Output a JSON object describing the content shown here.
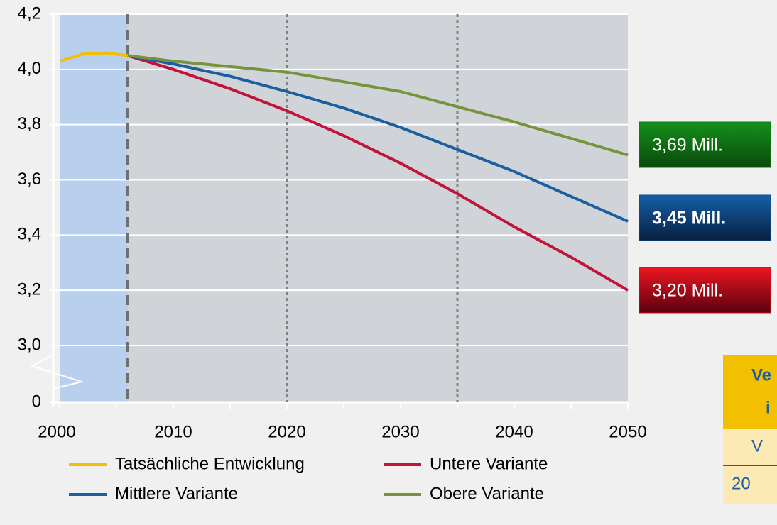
{
  "chart_data": {
    "type": "line",
    "x": [
      2000,
      2002,
      2004,
      2006,
      2010,
      2015,
      2020,
      2025,
      2030,
      2035,
      2040,
      2045,
      2050
    ],
    "series": [
      {
        "name": "Tatsächliche Entwicklung",
        "color": "#f2c000",
        "values": [
          4.03,
          4.055,
          4.06,
          4.05,
          null,
          null,
          null,
          null,
          null,
          null,
          null,
          null,
          null
        ]
      },
      {
        "name": "Untere Variante",
        "color": "#c0143c",
        "values": [
          null,
          null,
          null,
          4.05,
          4.0,
          3.93,
          3.85,
          3.76,
          3.66,
          3.55,
          3.43,
          3.32,
          3.2
        ]
      },
      {
        "name": "Mittlere Variante",
        "color": "#1a5fa0",
        "values": [
          null,
          null,
          null,
          4.05,
          4.02,
          3.975,
          3.92,
          3.86,
          3.79,
          3.71,
          3.63,
          3.54,
          3.45
        ]
      },
      {
        "name": "Obere Variante",
        "color": "#77933c",
        "values": [
          null,
          null,
          null,
          4.05,
          4.03,
          4.01,
          3.99,
          3.955,
          3.92,
          3.865,
          3.81,
          3.75,
          3.69
        ]
      }
    ],
    "xlim": [
      2000,
      2050
    ],
    "xticks": [
      2000,
      2010,
      2020,
      2030,
      2040,
      2050
    ],
    "xminorticks": [
      2005,
      2015,
      2025,
      2035,
      2045
    ],
    "ylim": [
      0,
      4.2
    ],
    "yticks": [
      0,
      {
        "value": 3.0,
        "label": "3,0"
      },
      {
        "value": 3.2,
        "label": "3,2"
      },
      {
        "value": 3.4,
        "label": "3,4"
      },
      {
        "value": 3.6,
        "label": "3,6"
      },
      {
        "value": 3.8,
        "label": "3,8"
      },
      {
        "value": 4.0,
        "label": "4,0"
      },
      {
        "value": 4.2,
        "label": "4,2"
      }
    ],
    "ybreak": [
      0,
      3.0
    ],
    "grid": true,
    "shaded_span": [
      2000,
      2006
    ],
    "vlines": [
      {
        "x": 2006,
        "style": "dashed"
      },
      {
        "x": 2020,
        "style": "dotted"
      },
      {
        "x": 2035,
        "style": "dotted"
      }
    ],
    "annotations": [
      {
        "text": "3,69 Mill.",
        "color": "#0f7a12"
      },
      {
        "text": "3,45 Mill.",
        "color": "#0e4a86"
      },
      {
        "text": "3,20 Mill.",
        "color": "#d40f1c"
      }
    ]
  },
  "table": {
    "header": [
      "Ve",
      "i"
    ],
    "rows": [
      [
        "V"
      ],
      [
        "20"
      ]
    ]
  }
}
